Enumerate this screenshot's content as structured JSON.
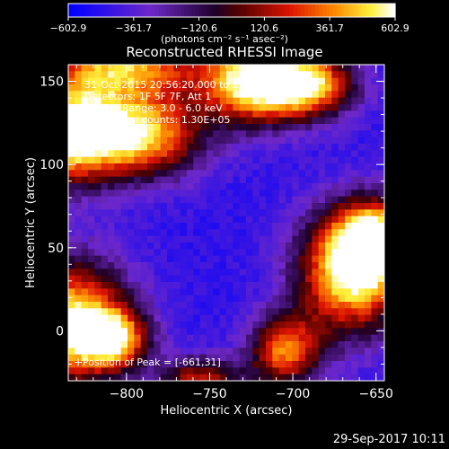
{
  "chart_data": {
    "type": "heatmap",
    "title": "Reconstructed RHESSI Image",
    "xlabel": "Heliocentric X (arcsec)",
    "ylabel": "Heliocentric Y (arcsec)",
    "xlim": [
      -835,
      -645
    ],
    "ylim": [
      -30,
      160
    ],
    "xticks": [
      -800,
      -750,
      -700,
      -650
    ],
    "yticks": [
      0,
      50,
      100,
      150
    ],
    "xtick_labels": [
      "−800",
      "−750",
      "−700",
      "−650"
    ],
    "ytick_labels": [
      "0",
      "50",
      "100",
      "150"
    ],
    "colorbar": {
      "min": -602.9,
      "max": 602.9,
      "ticks": [
        -602.9,
        -361.7,
        -120.6,
        120.6,
        361.7,
        602.9
      ],
      "tick_labels": [
        "−602.9",
        "−361.7",
        "−120.6",
        "120.6",
        "361.7",
        "602.9"
      ],
      "units_label": "(photons cm⁻² s⁻¹ asec⁻²)"
    },
    "sources": [
      {
        "x": -835,
        "y": 120,
        "peak": 602.9,
        "sx": 22,
        "sy": 22
      },
      {
        "x": -790,
        "y": 118,
        "peak": 480,
        "sx": 25,
        "sy": 18
      },
      {
        "x": -725,
        "y": 150,
        "peak": 560,
        "sx": 22,
        "sy": 18
      },
      {
        "x": -690,
        "y": 148,
        "peak": 430,
        "sx": 20,
        "sy": 14
      },
      {
        "x": -800,
        "y": 160,
        "peak": 380,
        "sx": 30,
        "sy": 14
      },
      {
        "x": -835,
        "y": 5,
        "peak": 602.9,
        "sx": 26,
        "sy": 26
      },
      {
        "x": -808,
        "y": -5,
        "peak": 300,
        "sx": 14,
        "sy": 12
      },
      {
        "x": -665,
        "y": 35,
        "peak": 602.9,
        "sx": 23,
        "sy": 26
      },
      {
        "x": -650,
        "y": 55,
        "peak": 420,
        "sx": 16,
        "sy": 16
      },
      {
        "x": -705,
        "y": -12,
        "peak": 340,
        "sx": 15,
        "sy": 15
      },
      {
        "x": -755,
        "y": -30,
        "peak": 200,
        "sx": 18,
        "sy": 10
      }
    ],
    "background_level": -470
  },
  "info_lines": [
    "31-Oct-2015 20:56:20.000 to 21:06:20.000",
    "Detectors: 1F 5F 7F, Att 1",
    "Energy Range: 3.0 - 6.0 keV",
    "Clean    Total counts: 1.30E+05"
  ],
  "peak_label": "Position of Peak = [-661,31]",
  "timestamp": "29-Sep-2017 10:11"
}
